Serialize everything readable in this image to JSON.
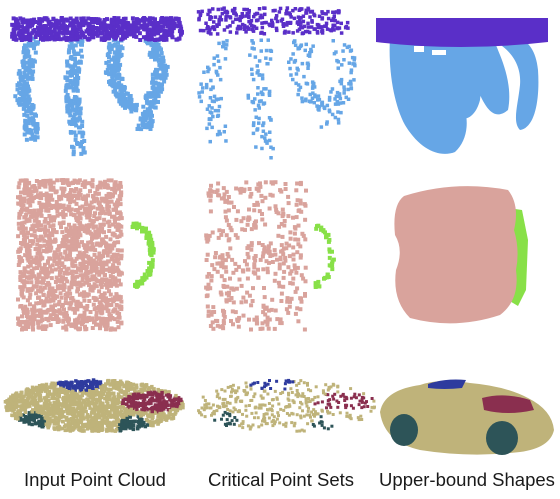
{
  "figure": {
    "rows": [
      {
        "object": "table",
        "parts": [
          "table-top",
          "table-legs"
        ]
      },
      {
        "object": "mug",
        "parts": [
          "mug-body",
          "mug-handle"
        ]
      },
      {
        "object": "car",
        "parts": [
          "car-roof",
          "car-body",
          "car-hood",
          "car-wheels"
        ]
      }
    ],
    "columns": [
      {
        "caption": "Input Point Cloud"
      },
      {
        "caption": "Critical Point Sets"
      },
      {
        "caption": "Upper-bound Shapes"
      }
    ],
    "colors": {
      "table_top": "#5a2fc8",
      "table_leg": "#66a6e6",
      "mug_body": "#d9a39c",
      "mug_handle": "#88e048",
      "car_body": "#bfb37a",
      "car_hood": "#8a2f4f",
      "car_roof": "#2e3b9e",
      "car_wheel": "#2d5458"
    }
  }
}
